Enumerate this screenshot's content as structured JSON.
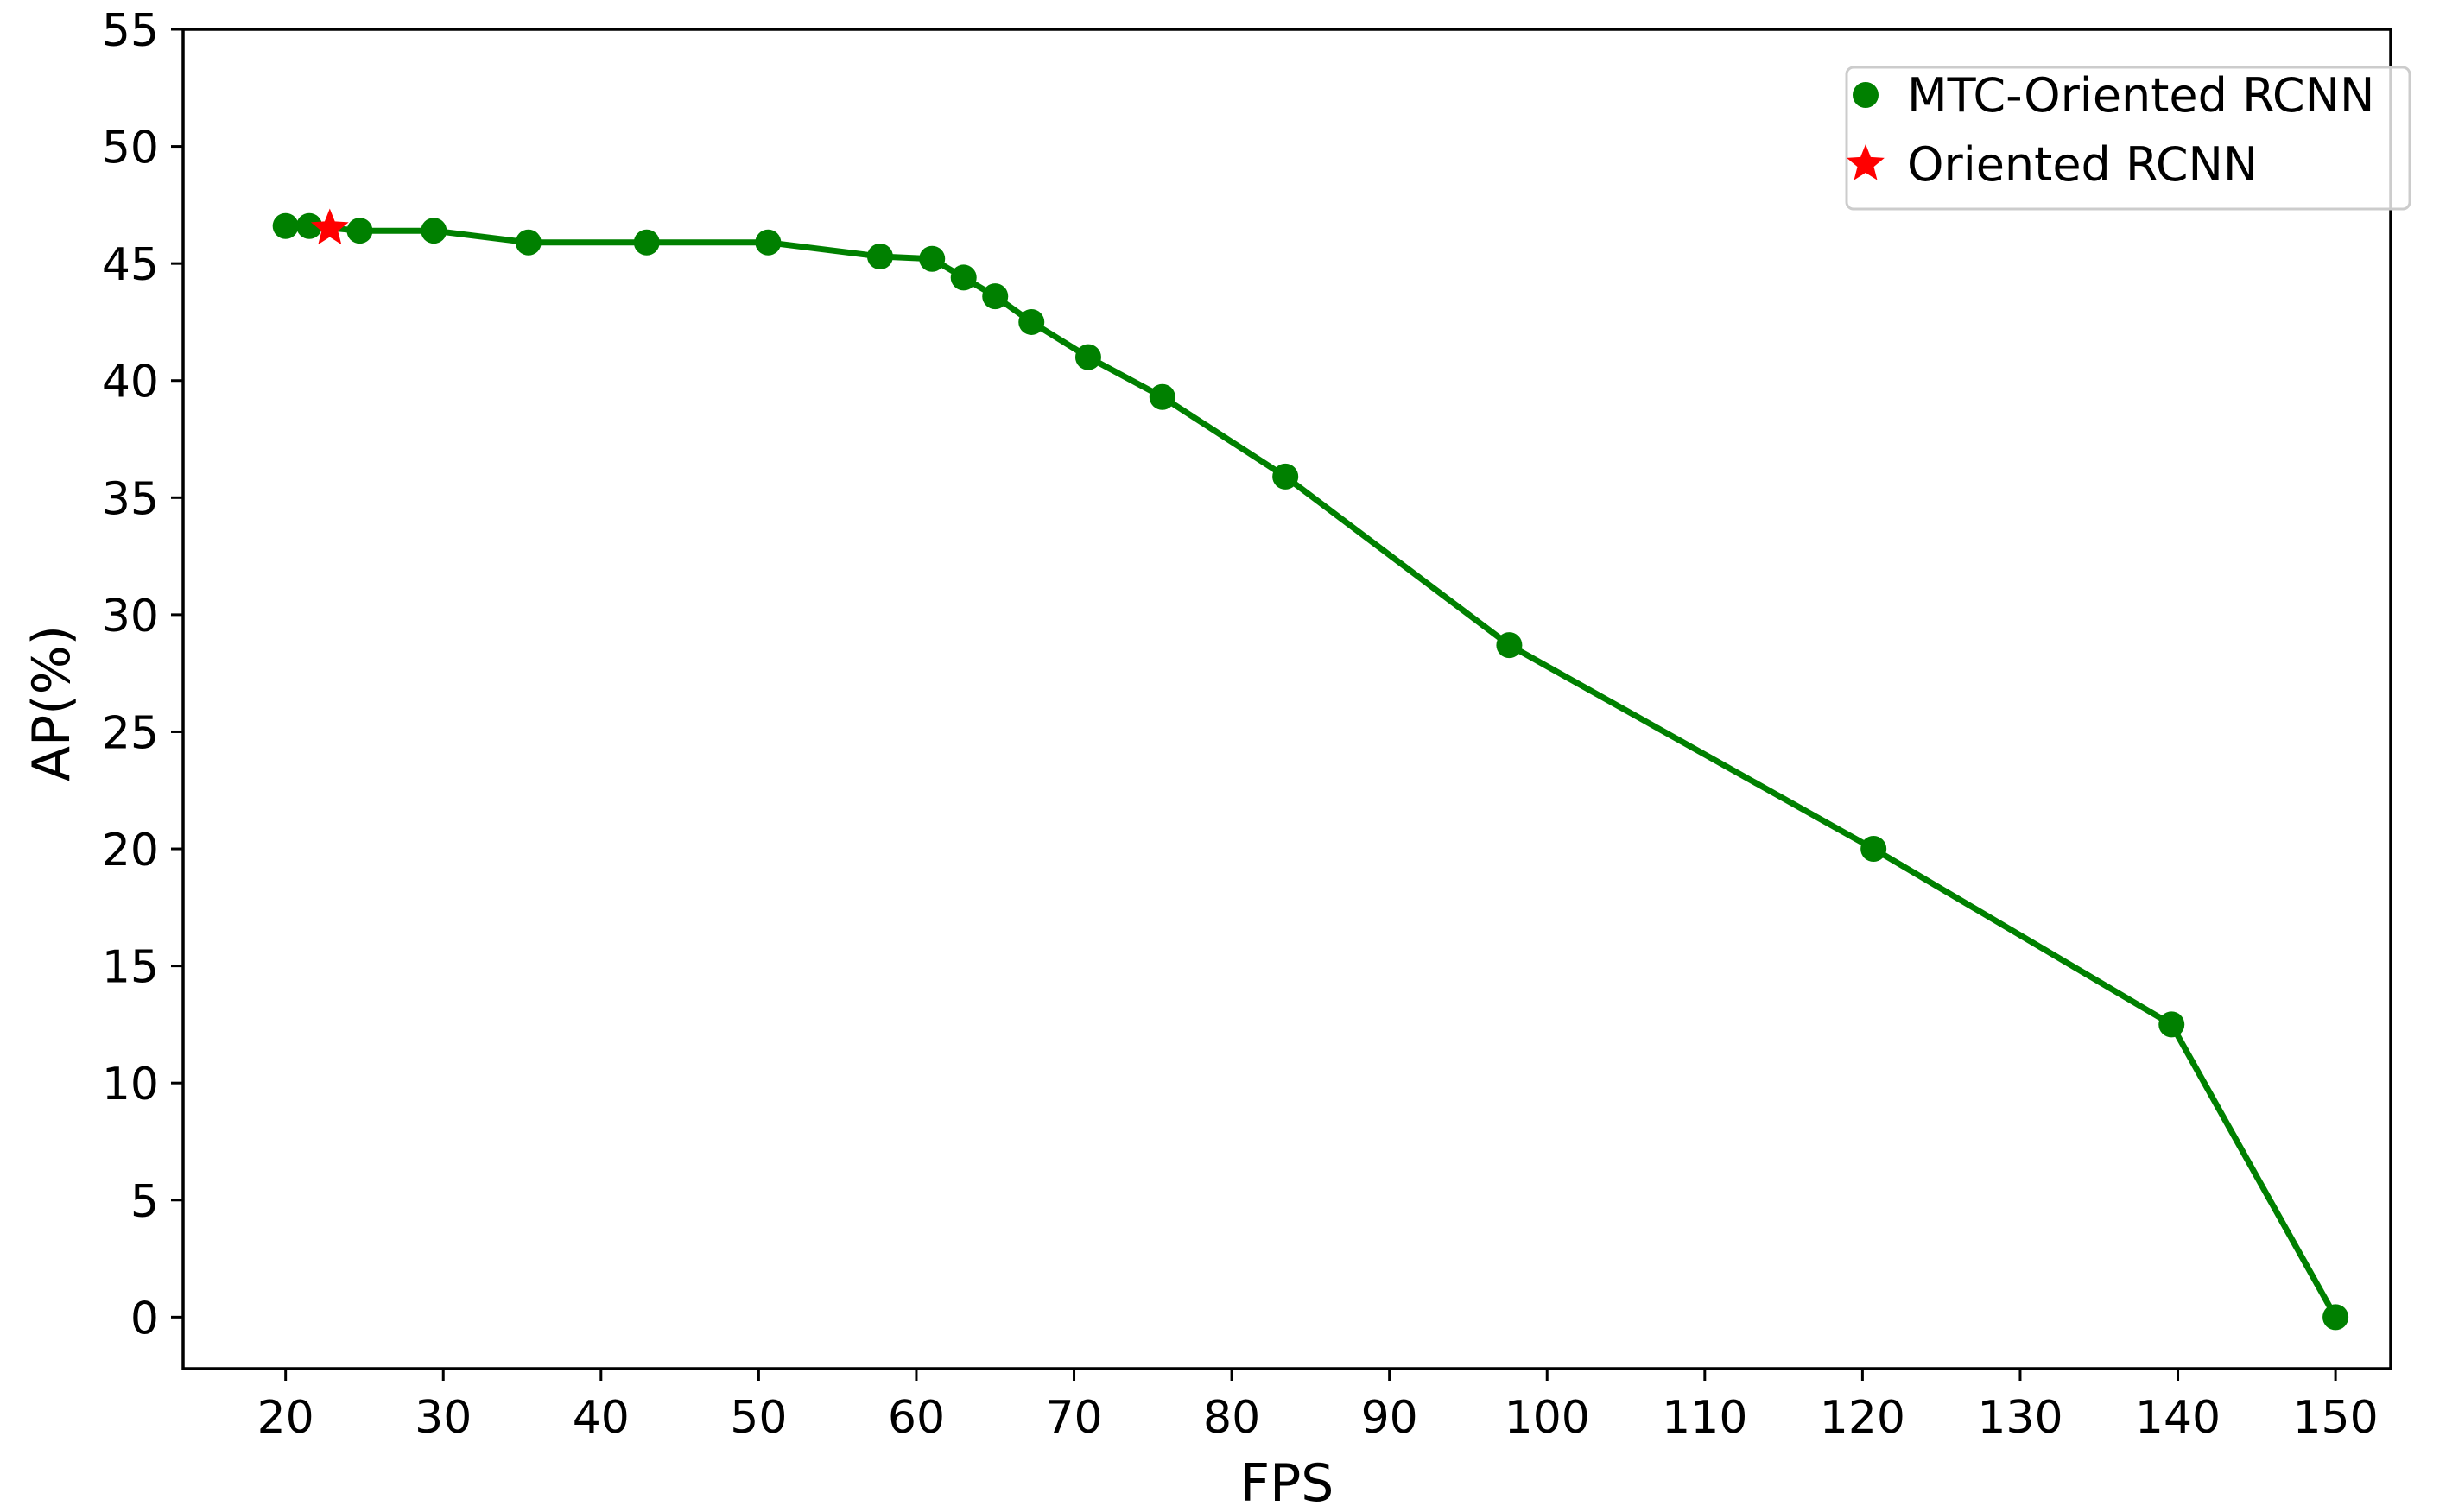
{
  "chart_data": {
    "type": "line",
    "xlabel": "FPS",
    "ylabel": "AP(%)",
    "xlim": [
      13.5,
      153.5
    ],
    "ylim": [
      -2.2,
      55
    ],
    "xticks": [
      20,
      30,
      40,
      50,
      60,
      70,
      80,
      90,
      100,
      110,
      120,
      130,
      140,
      150
    ],
    "yticks": [
      0,
      5,
      10,
      15,
      20,
      25,
      30,
      35,
      40,
      45,
      50,
      55
    ],
    "grid": false,
    "legend_position": "top-right",
    "series": [
      {
        "name": "MTC-Oriented RCNN",
        "color": "#008000",
        "marker": "circle",
        "line": true,
        "x": [
          20.0,
          21.5,
          24.7,
          29.4,
          35.4,
          42.9,
          50.6,
          57.7,
          61.0,
          63.0,
          65.0,
          67.3,
          70.9,
          75.6,
          83.4,
          97.6,
          120.7,
          139.6,
          150.0
        ],
        "y": [
          46.6,
          46.6,
          46.4,
          46.4,
          45.9,
          45.9,
          45.9,
          45.3,
          45.2,
          44.4,
          43.6,
          42.5,
          41.0,
          39.3,
          35.9,
          28.7,
          20.0,
          12.5,
          0.0
        ]
      },
      {
        "name": "Oriented RCNN",
        "color": "#ff0000",
        "marker": "star",
        "line": false,
        "x": [
          22.8
        ],
        "y": [
          46.5
        ]
      }
    ]
  }
}
